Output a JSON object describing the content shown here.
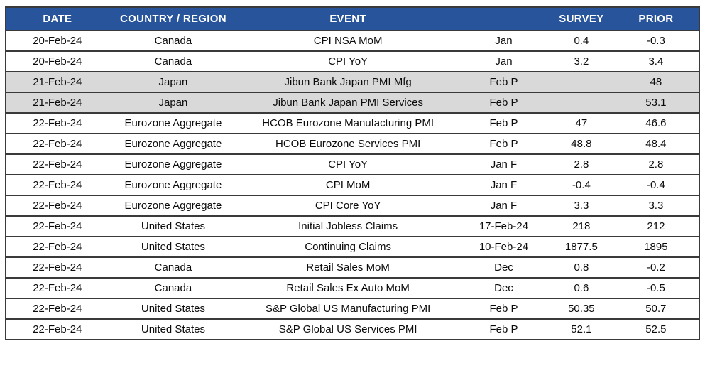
{
  "table": {
    "title": "economic-calendar",
    "colors": {
      "header_bg": "#27549B",
      "header_text": "#FFFFFF",
      "shaded_row_bg": "#D9D9D9",
      "border": "#3A3A3A"
    },
    "headers": [
      "DATE",
      "COUNTRY / REGION",
      "EVENT",
      "",
      "SURVEY",
      "PRIOR"
    ],
    "rows": [
      {
        "date": "20-Feb-24",
        "country": "Canada",
        "event": "CPI NSA MoM",
        "period": "Jan",
        "survey": "0.4",
        "prior": "-0.3",
        "shaded": false
      },
      {
        "date": "20-Feb-24",
        "country": "Canada",
        "event": "CPI YoY",
        "period": "Jan",
        "survey": "3.2",
        "prior": "3.4",
        "shaded": false
      },
      {
        "date": "21-Feb-24",
        "country": "Japan",
        "event": "Jibun Bank Japan PMI Mfg",
        "period": "Feb P",
        "survey": "",
        "prior": "48",
        "shaded": true
      },
      {
        "date": "21-Feb-24",
        "country": "Japan",
        "event": "Jibun Bank Japan PMI Services",
        "period": "Feb P",
        "survey": "",
        "prior": "53.1",
        "shaded": true
      },
      {
        "date": "22-Feb-24",
        "country": "Eurozone Aggregate",
        "event": "HCOB Eurozone Manufacturing PMI",
        "period": "Feb P",
        "survey": "47",
        "prior": "46.6",
        "shaded": false
      },
      {
        "date": "22-Feb-24",
        "country": "Eurozone Aggregate",
        "event": "HCOB Eurozone Services PMI",
        "period": "Feb P",
        "survey": "48.8",
        "prior": "48.4",
        "shaded": false
      },
      {
        "date": "22-Feb-24",
        "country": "Eurozone Aggregate",
        "event": "CPI YoY",
        "period": "Jan F",
        "survey": "2.8",
        "prior": "2.8",
        "shaded": false
      },
      {
        "date": "22-Feb-24",
        "country": "Eurozone Aggregate",
        "event": "CPI MoM",
        "period": "Jan F",
        "survey": "-0.4",
        "prior": "-0.4",
        "shaded": false
      },
      {
        "date": "22-Feb-24",
        "country": "Eurozone Aggregate",
        "event": "CPI Core YoY",
        "period": "Jan F",
        "survey": "3.3",
        "prior": "3.3",
        "shaded": false
      },
      {
        "date": "22-Feb-24",
        "country": "United States",
        "event": "Initial Jobless Claims",
        "period": "17-Feb-24",
        "survey": "218",
        "prior": "212",
        "shaded": false
      },
      {
        "date": "22-Feb-24",
        "country": "United States",
        "event": "Continuing Claims",
        "period": "10-Feb-24",
        "survey": "1877.5",
        "prior": "1895",
        "shaded": false
      },
      {
        "date": "22-Feb-24",
        "country": "Canada",
        "event": "Retail Sales MoM",
        "period": "Dec",
        "survey": "0.8",
        "prior": "-0.2",
        "shaded": false
      },
      {
        "date": "22-Feb-24",
        "country": "Canada",
        "event": "Retail Sales Ex Auto MoM",
        "period": "Dec",
        "survey": "0.6",
        "prior": "-0.5",
        "shaded": false
      },
      {
        "date": "22-Feb-24",
        "country": "United States",
        "event": "S&P Global US Manufacturing PMI",
        "period": "Feb P",
        "survey": "50.35",
        "prior": "50.7",
        "shaded": false
      },
      {
        "date": "22-Feb-24",
        "country": "United States",
        "event": "S&P Global US Services PMI",
        "period": "Feb P",
        "survey": "52.1",
        "prior": "52.5",
        "shaded": false
      }
    ]
  }
}
